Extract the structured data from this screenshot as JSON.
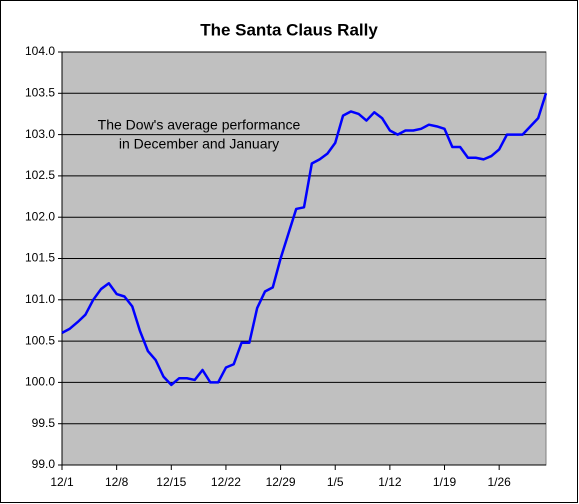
{
  "chart_data": {
    "type": "line",
    "title": "The Santa Claus Rally",
    "annotations": [
      "The Dow's average performance",
      "in December and January"
    ],
    "categories": [
      "12/1",
      null,
      null,
      null,
      null,
      null,
      null,
      "12/8",
      null,
      null,
      null,
      null,
      null,
      null,
      "12/15",
      null,
      null,
      null,
      null,
      null,
      null,
      "12/22",
      null,
      null,
      null,
      null,
      null,
      null,
      "12/29",
      null,
      null,
      null,
      null,
      null,
      null,
      "1/5",
      null,
      null,
      null,
      null,
      null,
      null,
      "1/12",
      null,
      null,
      null,
      null,
      null,
      null,
      "1/19",
      null,
      null,
      null,
      null,
      null,
      null,
      "1/26",
      null,
      null,
      null,
      null,
      null,
      null
    ],
    "values": [
      100.6,
      100.65,
      100.73,
      100.82,
      101.0,
      101.13,
      101.2,
      101.07,
      101.04,
      100.92,
      100.62,
      100.38,
      100.27,
      100.07,
      99.97,
      100.05,
      100.05,
      100.03,
      100.15,
      100.0,
      100.0,
      100.18,
      100.22,
      100.48,
      100.48,
      100.9,
      101.1,
      101.15,
      101.5,
      101.8,
      102.1,
      102.12,
      102.65,
      102.7,
      102.77,
      102.9,
      103.23,
      103.28,
      103.25,
      103.17,
      103.27,
      103.2,
      103.05,
      103.0,
      103.05,
      103.05,
      103.07,
      103.12,
      103.1,
      103.07,
      102.85,
      102.85,
      102.72,
      102.72,
      102.7,
      102.74,
      102.82,
      103.0,
      103.0,
      103.0,
      103.1,
      103.2,
      103.5
    ],
    "color": "#0000ff",
    "plot_background": "#c0c0c0",
    "ylim": [
      99.0,
      104.0
    ],
    "yticks": [
      {
        "value": 99.0,
        "label": "99.0"
      },
      {
        "value": 99.5,
        "label": "99.5"
      },
      {
        "value": 100.0,
        "label": "100.0"
      },
      {
        "value": 100.5,
        "label": "100.5"
      },
      {
        "value": 101.0,
        "label": "101.0"
      },
      {
        "value": 101.5,
        "label": "101.5"
      },
      {
        "value": 102.0,
        "label": "102.0"
      },
      {
        "value": 102.5,
        "label": "102.5"
      },
      {
        "value": 103.0,
        "label": "103.0"
      },
      {
        "value": 103.5,
        "label": "103.5"
      },
      {
        "value": 104.0,
        "label": "104.0"
      }
    ],
    "grid": true
  }
}
